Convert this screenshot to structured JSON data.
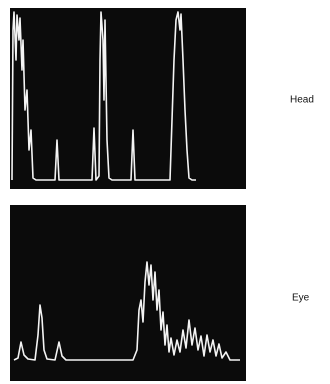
{
  "panels": [
    {
      "label": "Head"
    },
    {
      "label": "Eye"
    }
  ]
}
